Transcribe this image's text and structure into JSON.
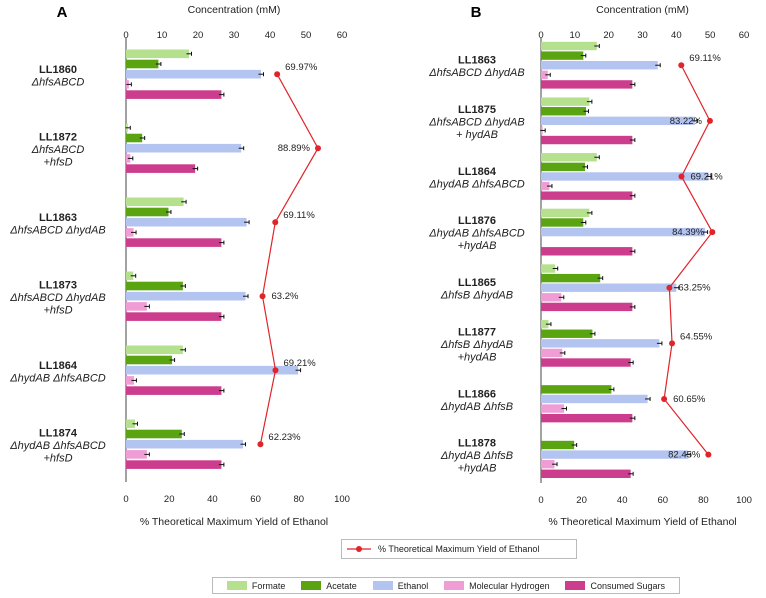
{
  "colors": {
    "Formate": "#b5e08e",
    "Acetate": "#5aa412",
    "Ethanol": "#b3c4f1",
    "Molecular Hydrogen": "#f09dd5",
    "Consumed Sugars": "#cc3d8e",
    "yield_line": "#e0242a"
  },
  "legend": {
    "line_label": "% Theoretical Maximum Yield of Ethanol",
    "series": [
      "Formate",
      "Acetate",
      "Ethanol",
      "Molecular Hydrogen",
      "Consumed Sugars"
    ]
  },
  "chart_data": [
    {
      "panel": "A",
      "type": "bar",
      "orientation": "horizontal",
      "top_axis_label": "Concentration (mM)",
      "top_axis_ticks": [
        0,
        10,
        20,
        30,
        40,
        50,
        60
      ],
      "top_axis_range": [
        0,
        60
      ],
      "bottom_axis_label": "% Theoretical Maximum Yield of Ethanol",
      "bottom_axis_ticks": [
        0,
        20,
        40,
        60,
        80,
        100
      ],
      "bottom_axis_range": [
        0,
        100
      ],
      "series_names": [
        "Formate",
        "Acetate",
        "Ethanol",
        "Molecular Hydrogen",
        "Consumed Sugars"
      ],
      "strains": [
        {
          "id": "LL1860",
          "genotype": [
            "ΔhfsABCD"
          ],
          "values": [
            17.5,
            9,
            37.5,
            0.8,
            26.5
          ],
          "yield": 69.97,
          "yield_label": "69.97%"
        },
        {
          "id": "LL1872",
          "genotype": [
            "ΔhfsABCD",
            "+hfsD"
          ],
          "values": [
            0.5,
            4.5,
            32,
            1.2,
            19.2
          ],
          "yield": 88.89,
          "yield_label": "88.89%"
        },
        {
          "id": "LL1863",
          "genotype": [
            "ΔhfsABCD ΔhydAB"
          ],
          "values": [
            16,
            11.8,
            33.5,
            2.1,
            26.5
          ],
          "yield": 69.11,
          "yield_label": "69.11%"
        },
        {
          "id": "LL1873",
          "genotype": [
            "ΔhfsABCD ΔhydAB",
            "+hfsD"
          ],
          "values": [
            2,
            15.8,
            33.2,
            5.8,
            26.5
          ],
          "yield": 63.2,
          "yield_label": "63.2%"
        },
        {
          "id": "LL1864",
          "genotype": [
            "ΔhydAB ΔhfsABCD"
          ],
          "values": [
            15.8,
            12.8,
            47.8,
            2.2,
            26.5
          ],
          "yield": 69.21,
          "yield_label": "69.21%"
        },
        {
          "id": "LL1874",
          "genotype": [
            "ΔhydAB ΔhfsABCD",
            "+hfsD"
          ],
          "values": [
            2.5,
            15.5,
            32.5,
            5.8,
            26.5
          ],
          "yield": 62.23,
          "yield_label": "62.23%"
        }
      ]
    },
    {
      "panel": "B",
      "type": "bar",
      "orientation": "horizontal",
      "top_axis_label": "Concentration (mM)",
      "top_axis_ticks": [
        0,
        10,
        20,
        30,
        40,
        50,
        60
      ],
      "top_axis_range": [
        0,
        60
      ],
      "bottom_axis_label": "% Theoretical Maximum Yield of Ethanol",
      "bottom_axis_ticks": [
        0,
        20,
        40,
        60,
        80,
        100
      ],
      "bottom_axis_range": [
        0,
        100
      ],
      "series_names": [
        "Formate",
        "Acetate",
        "Ethanol",
        "Molecular Hydrogen",
        "Consumed Sugars"
      ],
      "strains": [
        {
          "id": "LL1863",
          "genotype": [
            "ΔhfsABCD ΔhydAB"
          ],
          "values": [
            16.5,
            12.5,
            34.5,
            2,
            27
          ],
          "yield": 69.11,
          "yield_label": "69.11%"
        },
        {
          "id": "LL1875",
          "genotype": [
            "ΔhfsABCD ΔhydAB",
            "+ hydAB"
          ],
          "values": [
            14.3,
            13.3,
            45.5,
            0.5,
            27
          ],
          "yield": 83.22,
          "yield_label": "83.22%"
        },
        {
          "id": "LL1864",
          "genotype": [
            "ΔhydAB ΔhfsABCD"
          ],
          "values": [
            16.5,
            13,
            49.5,
            2.5,
            27
          ],
          "yield": 69.21,
          "yield_label": "69.21%"
        },
        {
          "id": "LL1876",
          "genotype": [
            "ΔhydAB ΔhfsABCD",
            "+hydAB"
          ],
          "values": [
            14.3,
            12.5,
            48.5,
            0,
            27
          ],
          "yield": 84.39,
          "yield_label": "84.39%"
        },
        {
          "id": "LL1865",
          "genotype": [
            "ΔhfsB ΔhydAB"
          ],
          "values": [
            4.2,
            17.5,
            40,
            6,
            27
          ],
          "yield": 63.25,
          "yield_label": "63.25%"
        },
        {
          "id": "LL1877",
          "genotype": [
            "ΔhfsB ΔhydAB",
            "+hydAB"
          ],
          "values": [
            2.2,
            15.2,
            35,
            6.3,
            26.5
          ],
          "yield": 64.55,
          "yield_label": "64.55%"
        },
        {
          "id": "LL1866",
          "genotype": [
            "ΔhydAB ΔhfsB"
          ],
          "values": [
            0,
            20.8,
            31.5,
            6.8,
            27
          ],
          "yield": 60.65,
          "yield_label": "60.65%"
        },
        {
          "id": "LL1878",
          "genotype": [
            "ΔhydAB ΔhfsB",
            "+hydAB"
          ],
          "values": [
            0,
            9.8,
            43.5,
            4,
            26.5
          ],
          "yield": 82.45,
          "yield_label": "82.45%"
        }
      ]
    }
  ]
}
